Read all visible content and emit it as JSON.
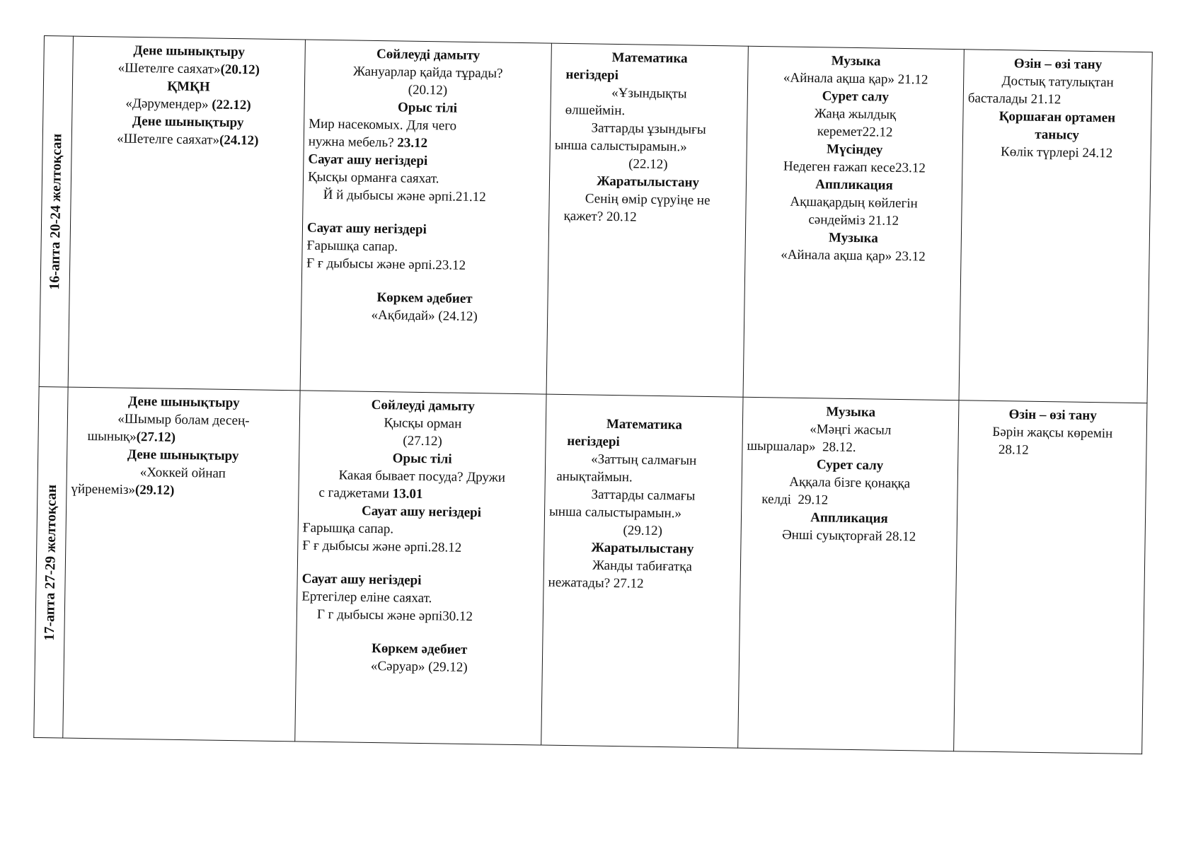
{
  "weeks": [
    {
      "label": "16-апта 20-24 желтоқсан",
      "cells": [
        [
          {
            "a": "c",
            "p": [
              {
                "t": "Дене шынықтыру",
                "b": true
              }
            ]
          },
          {
            "a": "c",
            "p": [
              {
                "t": "«Шетелге саяхат»"
              },
              {
                "t": "(20.12)",
                "b": true
              }
            ]
          },
          {
            "a": "c",
            "p": [
              {
                "t": "ҚМҚН",
                "b": true
              }
            ]
          },
          {
            "a": "c",
            "p": [
              {
                "t": "«Дәрумендер» "
              },
              {
                "t": "(22.12)",
                "b": true
              }
            ]
          },
          {
            "a": "c",
            "p": [
              {
                "t": "Дене шынықтыру",
                "b": true
              }
            ]
          },
          {
            "a": "c",
            "p": [
              {
                "t": "«Шетелге саяхат»"
              },
              {
                "t": "(24.12)",
                "b": true
              }
            ]
          }
        ],
        [
          {
            "a": "c",
            "p": [
              {
                "t": "Сөйлеуді дамыту",
                "b": true
              }
            ]
          },
          {
            "a": "c",
            "p": [
              {
                "t": "Жануарлар қайда тұрады?"
              }
            ]
          },
          {
            "a": "c",
            "p": [
              {
                "t": "(20.12)"
              }
            ]
          },
          {
            "a": "c",
            "p": [
              {
                "t": "Орыс тілі",
                "b": true
              }
            ]
          },
          {
            "a": "l",
            "p": [
              {
                "t": "Мир насекомых. Для чего"
              }
            ]
          },
          {
            "a": "l",
            "p": [
              {
                "t": "нужна мебель? "
              },
              {
                "t": "23.12",
                "b": true
              }
            ]
          },
          {
            "a": "l",
            "p": [
              {
                "t": "Сауат ашу негіздері",
                "b": true
              }
            ]
          },
          {
            "a": "l",
            "p": [
              {
                "t": "Қысқы орманға саяхат."
              }
            ]
          },
          {
            "a": "i",
            "p": [
              {
                "t": "Й й дыбысы және әрпі.21.12"
              }
            ]
          },
          {
            "a": "gap",
            "p": []
          },
          {
            "a": "l",
            "p": [
              {
                "t": "Сауат ашу негіздері",
                "b": true
              }
            ]
          },
          {
            "a": "l",
            "p": [
              {
                "t": "Ғарышқа сапар."
              }
            ]
          },
          {
            "a": "l",
            "p": [
              {
                "t": "Ғ ғ дыбысы және әрпі.23.12"
              }
            ]
          },
          {
            "a": "gap",
            "p": []
          },
          {
            "a": "c",
            "p": [
              {
                "t": "Көркем әдебиет",
                "b": true
              }
            ]
          },
          {
            "a": "c",
            "p": [
              {
                "t": "«Ақбидай» (24.12)"
              }
            ]
          }
        ],
        [
          {
            "a": "c",
            "p": [
              {
                "t": "Математика",
                "b": true
              }
            ]
          },
          {
            "a": "l",
            "p": [
              {
                "t": "   негіздері",
                "b": true
              }
            ]
          },
          {
            "a": "c",
            "p": [
              {
                "t": "«Ұзындықты"
              }
            ]
          },
          {
            "a": "l",
            "p": [
              {
                "t": "   өлшеймін."
              }
            ]
          },
          {
            "a": "c",
            "p": [
              {
                "t": "Заттарды ұзындығы"
              }
            ]
          },
          {
            "a": "l",
            "p": [
              {
                "t": "ынша салыстырамын.»"
              }
            ]
          },
          {
            "a": "c",
            "p": [
              {
                "t": "(22.12)"
              }
            ]
          },
          {
            "a": "c",
            "p": [
              {
                "t": "Жаратылыстану",
                "b": true
              }
            ]
          },
          {
            "a": "c",
            "p": [
              {
                "t": "Сенің өмір сүруіңе не"
              }
            ]
          },
          {
            "a": "l",
            "p": [
              {
                "t": "   қажет? 20.12"
              }
            ]
          }
        ],
        [
          {
            "a": "c",
            "p": [
              {
                "t": "Музыка",
                "b": true
              }
            ]
          },
          {
            "a": "c",
            "p": [
              {
                "t": "«Айнала ақша қар» 21.12"
              }
            ]
          },
          {
            "a": "c",
            "p": [
              {
                "t": "Сурет салу",
                "b": true
              }
            ]
          },
          {
            "a": "c",
            "p": [
              {
                "t": "Жаңа жылдық"
              }
            ]
          },
          {
            "a": "c",
            "p": [
              {
                "t": "керемет22.12"
              }
            ]
          },
          {
            "a": "c",
            "p": [
              {
                "t": "Мүсіндеу",
                "b": true
              }
            ]
          },
          {
            "a": "c",
            "p": [
              {
                "t": "Недеген ғажап кесе23.12"
              }
            ]
          },
          {
            "a": "c",
            "p": [
              {
                "t": "Аппликация",
                "b": true
              }
            ]
          },
          {
            "a": "c",
            "p": [
              {
                "t": "Ақшақардың көйлегін"
              }
            ]
          },
          {
            "a": "c",
            "p": [
              {
                "t": "сәндейміз 21.12"
              }
            ]
          },
          {
            "a": "c",
            "p": [
              {
                "t": "Музыка",
                "b": true
              }
            ]
          },
          {
            "a": "c",
            "p": [
              {
                "t": "«Айнала ақша қар» 23.12"
              }
            ]
          }
        ],
        [
          {
            "a": "c",
            "p": [
              {
                "t": "Өзін – өзі тану",
                "b": true
              }
            ]
          },
          {
            "a": "c",
            "p": [
              {
                "t": "Достық татулықтан"
              }
            ]
          },
          {
            "a": "l",
            "p": [
              {
                "t": "басталады 21.12"
              }
            ]
          },
          {
            "a": "c",
            "p": [
              {
                "t": "Қоршаған ортамен",
                "b": true
              }
            ]
          },
          {
            "a": "c",
            "p": [
              {
                "t": "танысу",
                "b": true
              }
            ]
          },
          {
            "a": "c",
            "p": [
              {
                "t": "Көлік түрлері 24.12"
              }
            ]
          }
        ]
      ]
    },
    {
      "label": "17-апта  27-29 желтоқсан",
      "cells": [
        [
          {
            "a": "c",
            "p": [
              {
                "t": "Дене шынықтыру",
                "b": true
              }
            ]
          },
          {
            "a": "c",
            "p": [
              {
                "t": "«Шымыр болам десең-"
              }
            ]
          },
          {
            "a": "i",
            "p": [
              {
                "t": "шынық»"
              },
              {
                "t": "(27.12)",
                "b": true
              }
            ]
          },
          {
            "a": "c",
            "p": [
              {
                "t": "Дене шынықтыру",
                "b": true
              }
            ]
          },
          {
            "a": "c",
            "p": [
              {
                "t": "«Хоккей ойнап"
              }
            ]
          },
          {
            "a": "l",
            "p": [
              {
                "t": "үйренеміз»"
              },
              {
                "t": "(29.12)",
                "b": true
              }
            ]
          }
        ],
        [
          {
            "a": "c",
            "p": [
              {
                "t": "Сөйлеуді дамыту",
                "b": true
              }
            ]
          },
          {
            "a": "c",
            "p": [
              {
                "t": "Қысқы орман"
              }
            ]
          },
          {
            "a": "c",
            "p": [
              {
                "t": "(27.12)"
              }
            ]
          },
          {
            "a": "c",
            "p": [
              {
                "t": "Орыс тілі",
                "b": true
              }
            ]
          },
          {
            "a": "c",
            "p": [
              {
                "t": "Какая бывает посуда? Дружи"
              }
            ]
          },
          {
            "a": "i",
            "p": [
              {
                "t": "с гаджетами "
              },
              {
                "t": "13.01",
                "b": true
              }
            ]
          },
          {
            "a": "c",
            "p": [
              {
                "t": "Сауат ашу негіздері",
                "b": true
              }
            ]
          },
          {
            "a": "l",
            "p": [
              {
                "t": "Ғарышқа сапар."
              }
            ]
          },
          {
            "a": "l",
            "p": [
              {
                "t": "Ғ ғ дыбысы және әрпі.28.12"
              }
            ]
          },
          {
            "a": "gap",
            "p": []
          },
          {
            "a": "l",
            "p": [
              {
                "t": "Сауат ашу негіздері",
                "b": true
              }
            ]
          },
          {
            "a": "l",
            "p": [
              {
                "t": "Ертегілер еліне саяхат."
              }
            ]
          },
          {
            "a": "i",
            "p": [
              {
                "t": "Г г дыбысы және әрпі30.12"
              }
            ]
          },
          {
            "a": "gap",
            "p": []
          },
          {
            "a": "c",
            "p": [
              {
                "t": "Көркем әдебиет",
                "b": true
              }
            ]
          },
          {
            "a": "c",
            "p": [
              {
                "t": "«Сәруар» (29.12)"
              }
            ]
          }
        ],
        [
          {
            "a": "gap",
            "p": []
          },
          {
            "a": "c",
            "p": [
              {
                "t": "Математика",
                "b": true
              }
            ]
          },
          {
            "a": "l",
            "p": [
              {
                "t": "     негіздері",
                "b": true
              }
            ]
          },
          {
            "a": "c",
            "p": [
              {
                "t": "«Заттың салмағын"
              }
            ]
          },
          {
            "a": "l",
            "p": [
              {
                "t": "  анықтаймын."
              }
            ]
          },
          {
            "a": "c",
            "p": [
              {
                "t": "Заттарды салмағы"
              }
            ]
          },
          {
            "a": "l",
            "p": [
              {
                "t": "ынша салыстырамын.»"
              }
            ]
          },
          {
            "a": "c",
            "p": [
              {
                "t": "(29.12)"
              }
            ]
          },
          {
            "a": "c",
            "p": [
              {
                "t": "Жаратылыстану",
                "b": true
              }
            ]
          },
          {
            "a": "c",
            "p": [
              {
                "t": "Жанды табиғатқа"
              }
            ]
          },
          {
            "a": "l",
            "p": [
              {
                "t": "нежатады? 27.12"
              }
            ]
          }
        ],
        [
          {
            "a": "c",
            "p": [
              {
                "t": "Музыка",
                "b": true
              }
            ]
          },
          {
            "a": "c",
            "p": [
              {
                "t": "«Мәңгі жасыл"
              }
            ]
          },
          {
            "a": "l",
            "p": [
              {
                "t": "шыршалар»  28.12."
              }
            ]
          },
          {
            "a": "c",
            "p": [
              {
                "t": "Сурет салу",
                "b": true
              }
            ]
          },
          {
            "a": "c",
            "p": [
              {
                "t": "Аққала бізге қонаққа"
              }
            ]
          },
          {
            "a": "i",
            "p": [
              {
                "t": "келді  29.12"
              }
            ]
          },
          {
            "a": "c",
            "p": [
              {
                "t": "Аппликация",
                "b": true
              }
            ]
          },
          {
            "a": "c",
            "p": [
              {
                "t": "Әнші суықторғай 28.12"
              }
            ]
          }
        ],
        [
          {
            "a": "c",
            "p": [
              {
                "t": "Өзін – өзі тану",
                "b": true
              }
            ]
          },
          {
            "a": "c",
            "p": [
              {
                "t": "Бәрін жақсы көремін"
              }
            ]
          },
          {
            "a": "i",
            "p": [
              {
                "t": "      28.12"
              }
            ]
          }
        ]
      ]
    }
  ]
}
